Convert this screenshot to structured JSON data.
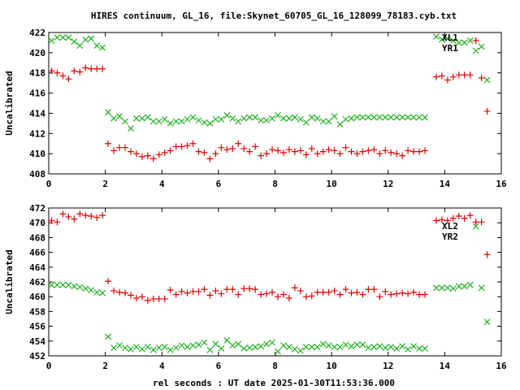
{
  "title": "HIRES continuum, GL_16, file:Skynet_60705_GL_16_128099_78183.cyb.txt",
  "xlabel": "rel seconds : UT date 2025-01-30T11:53:36.000",
  "colors": {
    "red": "#e00000",
    "green": "#20b020",
    "axis": "#000000"
  },
  "chart_data": [
    {
      "type": "scatter",
      "ylabel": "Uncalibrated",
      "xlim": [
        0,
        16
      ],
      "ylim": [
        408,
        422
      ],
      "xticks": [
        0,
        2,
        4,
        6,
        8,
        10,
        12,
        14,
        16
      ],
      "yticks": [
        408,
        410,
        412,
        414,
        416,
        418,
        420,
        422
      ],
      "legend_position": "top-right",
      "series": [
        {
          "name": "XL1",
          "marker": "x",
          "color": "#20b020",
          "x": [
            0.1,
            0.3,
            0.5,
            0.7,
            0.9,
            1.1,
            1.3,
            1.5,
            1.7,
            1.9,
            2.1,
            2.3,
            2.5,
            2.7,
            2.9,
            3.1,
            3.3,
            3.5,
            3.7,
            3.9,
            4.1,
            4.3,
            4.5,
            4.7,
            4.9,
            5.1,
            5.3,
            5.5,
            5.7,
            5.9,
            6.1,
            6.3,
            6.5,
            6.7,
            6.9,
            7.1,
            7.3,
            7.5,
            7.7,
            7.9,
            8.1,
            8.3,
            8.5,
            8.7,
            8.9,
            9.1,
            9.3,
            9.5,
            9.7,
            9.9,
            10.1,
            10.3,
            10.5,
            10.7,
            10.9,
            11.1,
            11.3,
            11.5,
            11.7,
            11.9,
            12.1,
            12.3,
            12.5,
            12.7,
            12.9,
            13.1,
            13.3,
            13.7,
            13.9,
            14.1,
            14.3,
            14.5,
            14.7,
            14.9,
            15.1,
            15.3,
            15.5
          ],
          "y": [
            421.2,
            421.5,
            421.5,
            421.5,
            421.1,
            420.7,
            421.3,
            421.4,
            420.7,
            420.5,
            414.1,
            413.5,
            413.7,
            413.2,
            412.5,
            413.5,
            413.5,
            413.6,
            413.2,
            413.2,
            413.4,
            413.0,
            413.2,
            413.2,
            413.4,
            413.6,
            413.3,
            413.1,
            413.0,
            413.4,
            413.4,
            413.8,
            413.5,
            413.2,
            413.5,
            413.6,
            413.6,
            413.3,
            413.3,
            413.5,
            413.8,
            413.5,
            413.5,
            413.6,
            413.4,
            413.1,
            413.6,
            413.5,
            413.2,
            413.2,
            413.7,
            412.9,
            413.4,
            413.5,
            413.6,
            413.6,
            413.6,
            413.6,
            413.6,
            413.6,
            413.6,
            413.6,
            413.6,
            413.6,
            413.6,
            413.6,
            413.6,
            421.6,
            421.3,
            421.4,
            421.2,
            421.0,
            421.0,
            421.2,
            420.2,
            420.6,
            417.3
          ]
        },
        {
          "name": "YR1",
          "marker": "+",
          "color": "#e00000",
          "x": [
            0.1,
            0.3,
            0.5,
            0.7,
            0.9,
            1.1,
            1.3,
            1.5,
            1.7,
            1.9,
            2.1,
            2.3,
            2.5,
            2.7,
            2.9,
            3.1,
            3.3,
            3.5,
            3.7,
            3.9,
            4.1,
            4.3,
            4.5,
            4.7,
            4.9,
            5.1,
            5.3,
            5.5,
            5.7,
            5.9,
            6.1,
            6.3,
            6.5,
            6.7,
            6.9,
            7.1,
            7.3,
            7.5,
            7.7,
            7.9,
            8.1,
            8.3,
            8.5,
            8.7,
            8.9,
            9.1,
            9.3,
            9.5,
            9.7,
            9.9,
            10.1,
            10.3,
            10.5,
            10.7,
            10.9,
            11.1,
            11.3,
            11.5,
            11.7,
            11.9,
            12.1,
            12.3,
            12.5,
            12.7,
            12.9,
            13.1,
            13.3,
            13.7,
            13.9,
            14.1,
            14.3,
            14.5,
            14.7,
            14.9,
            15.1,
            15.3,
            15.5
          ],
          "y": [
            418.2,
            418.0,
            417.7,
            417.4,
            418.2,
            418.1,
            418.5,
            418.4,
            418.4,
            418.4,
            411.0,
            410.3,
            410.6,
            410.6,
            410.2,
            410.0,
            409.7,
            409.8,
            409.5,
            409.9,
            410.1,
            410.3,
            410.7,
            410.7,
            410.8,
            411.0,
            410.2,
            410.1,
            409.5,
            410.0,
            410.6,
            410.4,
            410.5,
            411.0,
            410.5,
            410.2,
            410.7,
            409.8,
            410.0,
            410.4,
            410.3,
            410.1,
            410.4,
            410.2,
            410.3,
            409.9,
            410.5,
            410.0,
            410.2,
            410.4,
            410.3,
            410.0,
            410.6,
            410.2,
            410.0,
            410.2,
            410.3,
            410.4,
            410.0,
            410.3,
            410.1,
            410.0,
            409.8,
            410.3,
            410.2,
            410.2,
            410.3,
            417.6,
            417.7,
            417.3,
            417.6,
            417.8,
            417.8,
            417.8,
            421.2,
            417.5,
            414.2
          ]
        }
      ]
    },
    {
      "type": "scatter",
      "ylabel": "Uncalibrated",
      "xlim": [
        0,
        16
      ],
      "ylim": [
        452,
        472
      ],
      "xticks": [
        0,
        2,
        4,
        6,
        8,
        10,
        12,
        14,
        16
      ],
      "yticks": [
        452,
        454,
        456,
        458,
        460,
        462,
        464,
        466,
        468,
        470,
        472
      ],
      "legend_position": "top-right",
      "series": [
        {
          "name": "XL2",
          "marker": "x",
          "color": "#20b020",
          "x": [
            0.1,
            0.3,
            0.5,
            0.7,
            0.9,
            1.1,
            1.3,
            1.5,
            1.7,
            1.9,
            2.1,
            2.3,
            2.5,
            2.7,
            2.9,
            3.1,
            3.3,
            3.5,
            3.7,
            3.9,
            4.1,
            4.3,
            4.5,
            4.7,
            4.9,
            5.1,
            5.3,
            5.5,
            5.7,
            5.9,
            6.1,
            6.3,
            6.5,
            6.7,
            6.9,
            7.1,
            7.3,
            7.5,
            7.7,
            7.9,
            8.1,
            8.3,
            8.5,
            8.7,
            8.9,
            9.1,
            9.3,
            9.5,
            9.7,
            9.9,
            10.1,
            10.3,
            10.5,
            10.7,
            10.9,
            11.1,
            11.3,
            11.5,
            11.7,
            11.9,
            12.1,
            12.3,
            12.5,
            12.7,
            12.9,
            13.1,
            13.3,
            13.7,
            13.9,
            14.1,
            14.3,
            14.5,
            14.7,
            14.9,
            15.1,
            15.3,
            15.5
          ],
          "y": [
            461.6,
            461.6,
            461.6,
            461.6,
            461.4,
            461.3,
            461.1,
            460.9,
            460.6,
            460.5,
            454.6,
            453.1,
            453.4,
            453.1,
            452.9,
            453.2,
            452.9,
            453.2,
            452.8,
            453.1,
            453.2,
            452.8,
            453.1,
            453.4,
            453.2,
            453.4,
            453.5,
            453.8,
            452.8,
            453.6,
            453.0,
            454.1,
            453.4,
            453.6,
            453.0,
            453.1,
            453.2,
            453.3,
            453.6,
            453.8,
            452.6,
            453.4,
            453.2,
            452.9,
            452.7,
            453.2,
            453.2,
            453.2,
            453.6,
            453.4,
            453.2,
            453.2,
            453.5,
            453.3,
            453.5,
            453.5,
            453.1,
            453.2,
            453.3,
            453.1,
            453.2,
            453.0,
            453.3,
            452.9,
            453.3,
            453.0,
            453.0,
            461.2,
            461.2,
            461.2,
            461.1,
            461.4,
            461.4,
            461.6,
            469.5,
            461.2,
            456.6
          ]
        },
        {
          "name": "YR2",
          "marker": "+",
          "color": "#e00000",
          "x": [
            0.1,
            0.3,
            0.5,
            0.7,
            0.9,
            1.1,
            1.3,
            1.5,
            1.7,
            1.9,
            2.1,
            2.3,
            2.5,
            2.7,
            2.9,
            3.1,
            3.3,
            3.5,
            3.7,
            3.9,
            4.1,
            4.3,
            4.5,
            4.7,
            4.9,
            5.1,
            5.3,
            5.5,
            5.7,
            5.9,
            6.1,
            6.3,
            6.5,
            6.7,
            6.9,
            7.1,
            7.3,
            7.5,
            7.7,
            7.9,
            8.1,
            8.3,
            8.5,
            8.7,
            8.9,
            9.1,
            9.3,
            9.5,
            9.7,
            9.9,
            10.1,
            10.3,
            10.5,
            10.7,
            10.9,
            11.1,
            11.3,
            11.5,
            11.7,
            11.9,
            12.1,
            12.3,
            12.5,
            12.7,
            12.9,
            13.1,
            13.3,
            13.7,
            13.9,
            14.1,
            14.3,
            14.5,
            14.7,
            14.9,
            15.1,
            15.3,
            15.5
          ],
          "y": [
            470.3,
            470.1,
            471.2,
            470.8,
            470.5,
            471.2,
            471.0,
            470.9,
            470.7,
            471.0,
            462.1,
            460.8,
            460.6,
            460.5,
            460.2,
            459.8,
            460.0,
            459.5,
            459.7,
            459.7,
            459.7,
            460.9,
            460.3,
            460.7,
            460.5,
            460.7,
            460.7,
            461.0,
            460.2,
            460.8,
            460.4,
            461.0,
            461.0,
            460.3,
            461.1,
            461.1,
            461.0,
            460.3,
            460.4,
            460.6,
            460.0,
            460.3,
            459.8,
            461.2,
            460.8,
            460.0,
            460.1,
            460.6,
            460.6,
            460.6,
            460.8,
            460.3,
            461.0,
            460.5,
            460.6,
            460.3,
            461.0,
            461.0,
            460.0,
            460.7,
            460.3,
            460.4,
            460.5,
            460.4,
            460.6,
            460.3,
            460.3,
            470.3,
            470.4,
            470.3,
            470.6,
            470.9,
            470.6,
            471.0,
            470.1,
            470.1,
            465.7
          ]
        }
      ]
    }
  ]
}
